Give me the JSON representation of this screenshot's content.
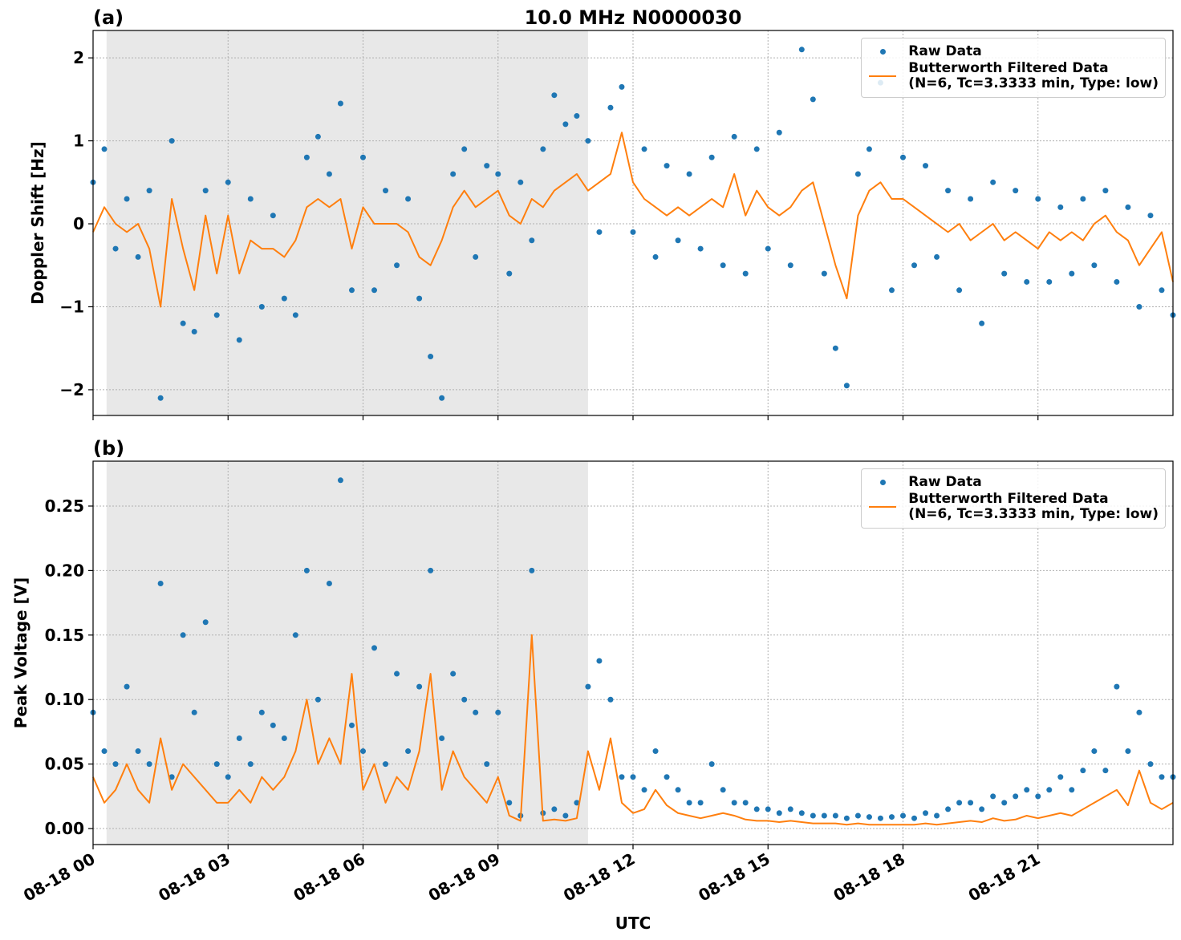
{
  "chart_data": [
    {
      "type": "line",
      "title": "10.0 MHz N0000030",
      "panel_label": "(a)",
      "ylabel": "Doppler Shift [Hz]",
      "x": [
        0,
        0.25,
        0.5,
        0.75,
        1,
        1.25,
        1.5,
        1.75,
        2,
        2.25,
        2.5,
        2.75,
        3,
        3.25,
        3.5,
        3.75,
        4,
        4.25,
        4.5,
        4.75,
        5,
        5.25,
        5.5,
        5.75,
        6,
        6.25,
        6.5,
        6.75,
        7,
        7.25,
        7.5,
        7.75,
        8,
        8.25,
        8.5,
        8.75,
        9,
        9.25,
        9.5,
        9.75,
        10,
        10.25,
        10.5,
        10.75,
        11,
        11.25,
        11.5,
        11.75,
        12,
        12.25,
        12.5,
        12.75,
        13,
        13.25,
        13.5,
        13.75,
        14,
        14.25,
        14.5,
        14.75,
        15,
        15.25,
        15.5,
        15.75,
        16,
        16.25,
        16.5,
        16.75,
        17,
        17.25,
        17.5,
        17.75,
        18,
        18.25,
        18.5,
        18.75,
        19,
        19.25,
        19.5,
        19.75,
        20,
        20.25,
        20.5,
        20.75,
        21,
        21.25,
        21.5,
        21.75,
        22,
        22.25,
        22.5,
        22.75,
        23,
        23.25,
        23.5,
        23.75,
        24
      ],
      "series": [
        {
          "name": "Raw Data",
          "color": "#1f77b4",
          "style": "dots",
          "values": [
            0.5,
            0.9,
            -0.3,
            0.3,
            -0.4,
            0.4,
            -2.1,
            1.0,
            -1.2,
            -1.3,
            0.4,
            -1.1,
            0.5,
            -1.4,
            0.3,
            -1.0,
            0.1,
            -0.9,
            -1.1,
            0.8,
            1.05,
            0.6,
            1.45,
            -0.8,
            0.8,
            -0.8,
            0.4,
            -0.5,
            0.3,
            -0.9,
            -1.6,
            -2.1,
            0.6,
            0.9,
            -0.4,
            0.7,
            0.6,
            -0.6,
            0.5,
            -0.2,
            0.9,
            1.55,
            1.2,
            1.3,
            1.0,
            -0.1,
            1.4,
            1.65,
            -0.1,
            0.9,
            -0.4,
            0.7,
            -0.2,
            0.6,
            -0.3,
            0.8,
            -0.5,
            1.05,
            -0.6,
            0.9,
            -0.3,
            1.1,
            -0.5,
            2.1,
            1.5,
            -0.6,
            -1.5,
            -1.95,
            0.6,
            0.9,
            1.7,
            -0.8,
            0.8,
            -0.5,
            0.7,
            -0.4,
            0.4,
            -0.8,
            0.3,
            -1.2,
            0.5,
            -0.6,
            0.4,
            -0.7,
            0.3,
            -0.7,
            0.2,
            -0.6,
            0.3,
            -0.5,
            0.4,
            -0.7,
            0.2,
            -1.0,
            0.1,
            -0.8,
            -1.1
          ]
        },
        {
          "name": "Butterworth Filtered Data\n(N=6, Tc=3.3333 min, Type: low)",
          "color": "#ff7f0e",
          "style": "line",
          "values": [
            -0.1,
            0.2,
            0.0,
            -0.1,
            0.0,
            -0.3,
            -1.0,
            0.3,
            -0.3,
            -0.8,
            0.1,
            -0.6,
            0.1,
            -0.6,
            -0.2,
            -0.3,
            -0.3,
            -0.4,
            -0.2,
            0.2,
            0.3,
            0.2,
            0.3,
            -0.3,
            0.2,
            0.0,
            0.0,
            0.0,
            -0.1,
            -0.4,
            -0.5,
            -0.2,
            0.2,
            0.4,
            0.2,
            0.3,
            0.4,
            0.1,
            0.0,
            0.3,
            0.2,
            0.4,
            0.5,
            0.6,
            0.4,
            0.5,
            0.6,
            1.1,
            0.5,
            0.3,
            0.2,
            0.1,
            0.2,
            0.1,
            0.2,
            0.3,
            0.2,
            0.6,
            0.1,
            0.4,
            0.2,
            0.1,
            0.2,
            0.4,
            0.5,
            0.0,
            -0.5,
            -0.9,
            0.1,
            0.4,
            0.5,
            0.3,
            0.3,
            0.2,
            0.1,
            0.0,
            -0.1,
            0.0,
            -0.2,
            -0.1,
            0.0,
            -0.2,
            -0.1,
            -0.2,
            -0.3,
            -0.1,
            -0.2,
            -0.1,
            -0.2,
            0.0,
            0.1,
            -0.1,
            -0.2,
            -0.5,
            -0.3,
            -0.1,
            -0.7
          ]
        }
      ],
      "xlim": [
        0,
        24
      ],
      "xticks": [
        0,
        3,
        6,
        9,
        12,
        15,
        18,
        21
      ],
      "ylim": [
        -2.31,
        2.33
      ],
      "yticks": [
        {
          "value": -2,
          "label": "−2"
        },
        {
          "value": -1,
          "label": "−1"
        },
        0,
        1,
        2
      ],
      "shaded_xrange": [
        0.3,
        11.0
      ],
      "grid": true,
      "legend": "upper right"
    },
    {
      "type": "line",
      "panel_label": "(b)",
      "ylabel": "Peak Voltage [V]",
      "xlabel": "UTC",
      "x": [
        0,
        0.25,
        0.5,
        0.75,
        1,
        1.25,
        1.5,
        1.75,
        2,
        2.25,
        2.5,
        2.75,
        3,
        3.25,
        3.5,
        3.75,
        4,
        4.25,
        4.5,
        4.75,
        5,
        5.25,
        5.5,
        5.75,
        6,
        6.25,
        6.5,
        6.75,
        7,
        7.25,
        7.5,
        7.75,
        8,
        8.25,
        8.5,
        8.75,
        9,
        9.25,
        9.5,
        9.75,
        10,
        10.25,
        10.5,
        10.75,
        11,
        11.25,
        11.5,
        11.75,
        12,
        12.25,
        12.5,
        12.75,
        13,
        13.25,
        13.5,
        13.75,
        14,
        14.25,
        14.5,
        14.75,
        15,
        15.25,
        15.5,
        15.75,
        16,
        16.25,
        16.5,
        16.75,
        17,
        17.25,
        17.5,
        17.75,
        18,
        18.25,
        18.5,
        18.75,
        19,
        19.25,
        19.5,
        19.75,
        20,
        20.25,
        20.5,
        20.75,
        21,
        21.25,
        21.5,
        21.75,
        22,
        22.25,
        22.5,
        22.75,
        23,
        23.25,
        23.5,
        23.75,
        24
      ],
      "series": [
        {
          "name": "Raw Data",
          "color": "#1f77b4",
          "style": "dots",
          "values": [
            0.09,
            0.06,
            0.05,
            0.11,
            0.06,
            0.05,
            0.19,
            0.04,
            0.15,
            0.09,
            0.16,
            0.05,
            0.04,
            0.07,
            0.05,
            0.09,
            0.08,
            0.07,
            0.15,
            0.2,
            0.1,
            0.19,
            0.27,
            0.08,
            0.06,
            0.14,
            0.05,
            0.12,
            0.06,
            0.11,
            0.2,
            0.07,
            0.12,
            0.1,
            0.09,
            0.05,
            0.09,
            0.02,
            0.01,
            0.2,
            0.012,
            0.015,
            0.01,
            0.02,
            0.11,
            0.13,
            0.1,
            0.04,
            0.04,
            0.03,
            0.06,
            0.04,
            0.03,
            0.02,
            0.02,
            0.05,
            0.03,
            0.02,
            0.02,
            0.015,
            0.015,
            0.012,
            0.015,
            0.012,
            0.01,
            0.01,
            0.01,
            0.008,
            0.01,
            0.009,
            0.008,
            0.009,
            0.01,
            0.008,
            0.012,
            0.01,
            0.015,
            0.02,
            0.02,
            0.015,
            0.025,
            0.02,
            0.025,
            0.03,
            0.025,
            0.03,
            0.04,
            0.03,
            0.045,
            0.06,
            0.045,
            0.11,
            0.06,
            0.09,
            0.05,
            0.04,
            0.04
          ]
        },
        {
          "name": "Butterworth Filtered Data\n(N=6, Tc=3.3333 min, Type: low)",
          "color": "#ff7f0e",
          "style": "line",
          "values": [
            0.04,
            0.02,
            0.03,
            0.05,
            0.03,
            0.02,
            0.07,
            0.03,
            0.05,
            0.04,
            0.03,
            0.02,
            0.02,
            0.03,
            0.02,
            0.04,
            0.03,
            0.04,
            0.06,
            0.1,
            0.05,
            0.07,
            0.05,
            0.12,
            0.03,
            0.05,
            0.02,
            0.04,
            0.03,
            0.06,
            0.12,
            0.03,
            0.06,
            0.04,
            0.03,
            0.02,
            0.04,
            0.01,
            0.006,
            0.15,
            0.006,
            0.007,
            0.006,
            0.008,
            0.06,
            0.03,
            0.07,
            0.02,
            0.012,
            0.015,
            0.03,
            0.018,
            0.012,
            0.01,
            0.008,
            0.01,
            0.012,
            0.01,
            0.007,
            0.006,
            0.006,
            0.005,
            0.006,
            0.005,
            0.004,
            0.004,
            0.004,
            0.003,
            0.004,
            0.003,
            0.003,
            0.003,
            0.003,
            0.003,
            0.004,
            0.003,
            0.004,
            0.005,
            0.006,
            0.005,
            0.008,
            0.006,
            0.007,
            0.01,
            0.008,
            0.01,
            0.012,
            0.01,
            0.015,
            0.02,
            0.025,
            0.03,
            0.018,
            0.045,
            0.02,
            0.015,
            0.02
          ]
        }
      ],
      "xlim": [
        0,
        24
      ],
      "xticks": [
        {
          "value": 0,
          "label": "08-18 00"
        },
        {
          "value": 3,
          "label": "08-18 03"
        },
        {
          "value": 6,
          "label": "08-18 06"
        },
        {
          "value": 9,
          "label": "08-18 09"
        },
        {
          "value": 12,
          "label": "08-18 12"
        },
        {
          "value": 15,
          "label": "08-18 15"
        },
        {
          "value": 18,
          "label": "08-18 18"
        },
        {
          "value": 21,
          "label": "08-18 21"
        }
      ],
      "ylim": [
        -0.0124,
        0.2848
      ],
      "yticks": [
        {
          "value": 0,
          "label": "0.00"
        },
        0.05,
        {
          "value": 0.1,
          "label": "0.10"
        },
        0.15,
        {
          "value": 0.2,
          "label": "0.20"
        },
        0.25
      ],
      "shaded_xrange": [
        0.3,
        11.0
      ],
      "grid": true,
      "legend": "upper right"
    }
  ]
}
